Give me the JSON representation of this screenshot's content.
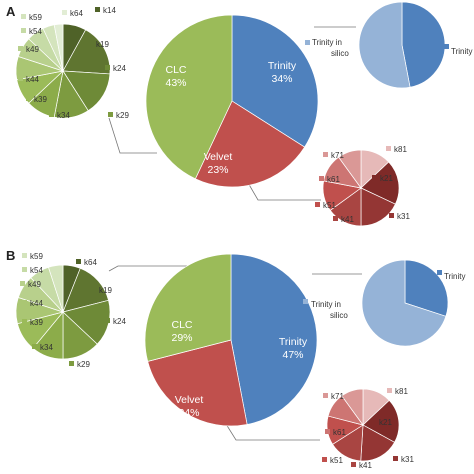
{
  "colors": {
    "trinity": "#4f81bd",
    "trinity_in_silico": "#95b3d7",
    "clc": "#9bbb59",
    "velvet": "#c0504d",
    "slice_edge": "#ffffff",
    "connector": "#777777"
  },
  "chart_data": [
    {
      "panel": "A",
      "main": {
        "type": "pie",
        "slices": [
          {
            "name": "Trinity",
            "label": "Trinity",
            "pct_label": "34%",
            "value": 34,
            "color": "#4f81bd"
          },
          {
            "name": "Velvet",
            "label": "Velvet",
            "pct_label": "23%",
            "value": 23,
            "color": "#c0504d"
          },
          {
            "name": "CLC",
            "label": "CLC",
            "pct_label": "43%",
            "value": 43,
            "color": "#9bbb59"
          }
        ]
      },
      "trinity_breakdown": {
        "type": "pie",
        "slices": [
          {
            "name": "Trinity",
            "value": 47,
            "color": "#4f81bd"
          },
          {
            "name": "Trinity in silico",
            "value": 53,
            "color": "#95b3d7"
          }
        ],
        "legend": [
          {
            "label": "Trinity in silico",
            "color": "#95b3d7"
          },
          {
            "label": "Trinity",
            "color": "#4f81bd"
          }
        ]
      },
      "clc_breakdown": {
        "type": "pie",
        "slices": [
          {
            "name": "k14",
            "value": 8,
            "color": "#4f6228"
          },
          {
            "name": "k19",
            "value": 18,
            "color": "#5f7530"
          },
          {
            "name": "k24",
            "value": 15,
            "color": "#6e8a37"
          },
          {
            "name": "k29",
            "value": 12,
            "color": "#7d9b40"
          },
          {
            "name": "k34",
            "value": 10,
            "color": "#8cac4a"
          },
          {
            "name": "k39",
            "value": 9,
            "color": "#9bbb59"
          },
          {
            "name": "k44",
            "value": 8,
            "color": "#aac673"
          },
          {
            "name": "k49",
            "value": 7,
            "color": "#b8d08c"
          },
          {
            "name": "k54",
            "value": 6,
            "color": "#c6dba6"
          },
          {
            "name": "k59",
            "value": 4,
            "color": "#d4e4bd"
          },
          {
            "name": "k64",
            "value": 3,
            "color": "#e2edd5"
          }
        ]
      },
      "velvet_breakdown": {
        "type": "pie",
        "slices": [
          {
            "name": "k81",
            "value": 13,
            "color": "#e6b9b8"
          },
          {
            "name": "k21",
            "value": 19,
            "color": "#7f2a28"
          },
          {
            "name": "k31",
            "value": 18,
            "color": "#943634"
          },
          {
            "name": "k41",
            "value": 15,
            "color": "#a94542"
          },
          {
            "name": "k51",
            "value": 13,
            "color": "#c0504d"
          },
          {
            "name": "k61",
            "value": 12,
            "color": "#cd7573"
          },
          {
            "name": "k71",
            "value": 10,
            "color": "#da9896"
          }
        ]
      }
    },
    {
      "panel": "B",
      "main": {
        "type": "pie",
        "slices": [
          {
            "name": "Trinity",
            "label": "Trinity",
            "pct_label": "47%",
            "value": 47,
            "color": "#4f81bd"
          },
          {
            "name": "Velvet",
            "label": "Velvet",
            "pct_label": "24%",
            "value": 24,
            "color": "#c0504d"
          },
          {
            "name": "CLC",
            "label": "CLC",
            "pct_label": "29%",
            "value": 29,
            "color": "#9bbb59"
          }
        ]
      },
      "trinity_breakdown": {
        "type": "pie",
        "slices": [
          {
            "name": "Trinity",
            "value": 30,
            "color": "#4f81bd"
          },
          {
            "name": "Trinity in silico",
            "value": 70,
            "color": "#95b3d7"
          }
        ],
        "legend": [
          {
            "label": "Trinity",
            "color": "#4f81bd"
          },
          {
            "label": "Trinity in silico",
            "color": "#95b3d7"
          }
        ]
      },
      "clc_breakdown": {
        "type": "pie",
        "slices": [
          {
            "name": "k64",
            "value": 6,
            "color": "#4f6228"
          },
          {
            "name": "k19",
            "value": 15,
            "color": "#5f7530"
          },
          {
            "name": "k24",
            "value": 16,
            "color": "#6e8a37"
          },
          {
            "name": "k29",
            "value": 13,
            "color": "#7d9b40"
          },
          {
            "name": "k34",
            "value": 11,
            "color": "#8cac4a"
          },
          {
            "name": "k39",
            "value": 10,
            "color": "#9bbb59"
          },
          {
            "name": "k44",
            "value": 9,
            "color": "#aac673"
          },
          {
            "name": "k49",
            "value": 8,
            "color": "#b8d08c"
          },
          {
            "name": "k54",
            "value": 7,
            "color": "#c6dba6"
          },
          {
            "name": "k59",
            "value": 5,
            "color": "#d4e4bd"
          }
        ]
      },
      "velvet_breakdown": {
        "type": "pie",
        "slices": [
          {
            "name": "k81",
            "value": 13,
            "color": "#e6b9b8"
          },
          {
            "name": "k21",
            "value": 20,
            "color": "#7f2a28"
          },
          {
            "name": "k31",
            "value": 18,
            "color": "#943634"
          },
          {
            "name": "k41",
            "value": 15,
            "color": "#a94542"
          },
          {
            "name": "k51",
            "value": 13,
            "color": "#c0504d"
          },
          {
            "name": "k61",
            "value": 11,
            "color": "#cd7573"
          },
          {
            "name": "k71",
            "value": 10,
            "color": "#da9896"
          }
        ]
      }
    }
  ]
}
